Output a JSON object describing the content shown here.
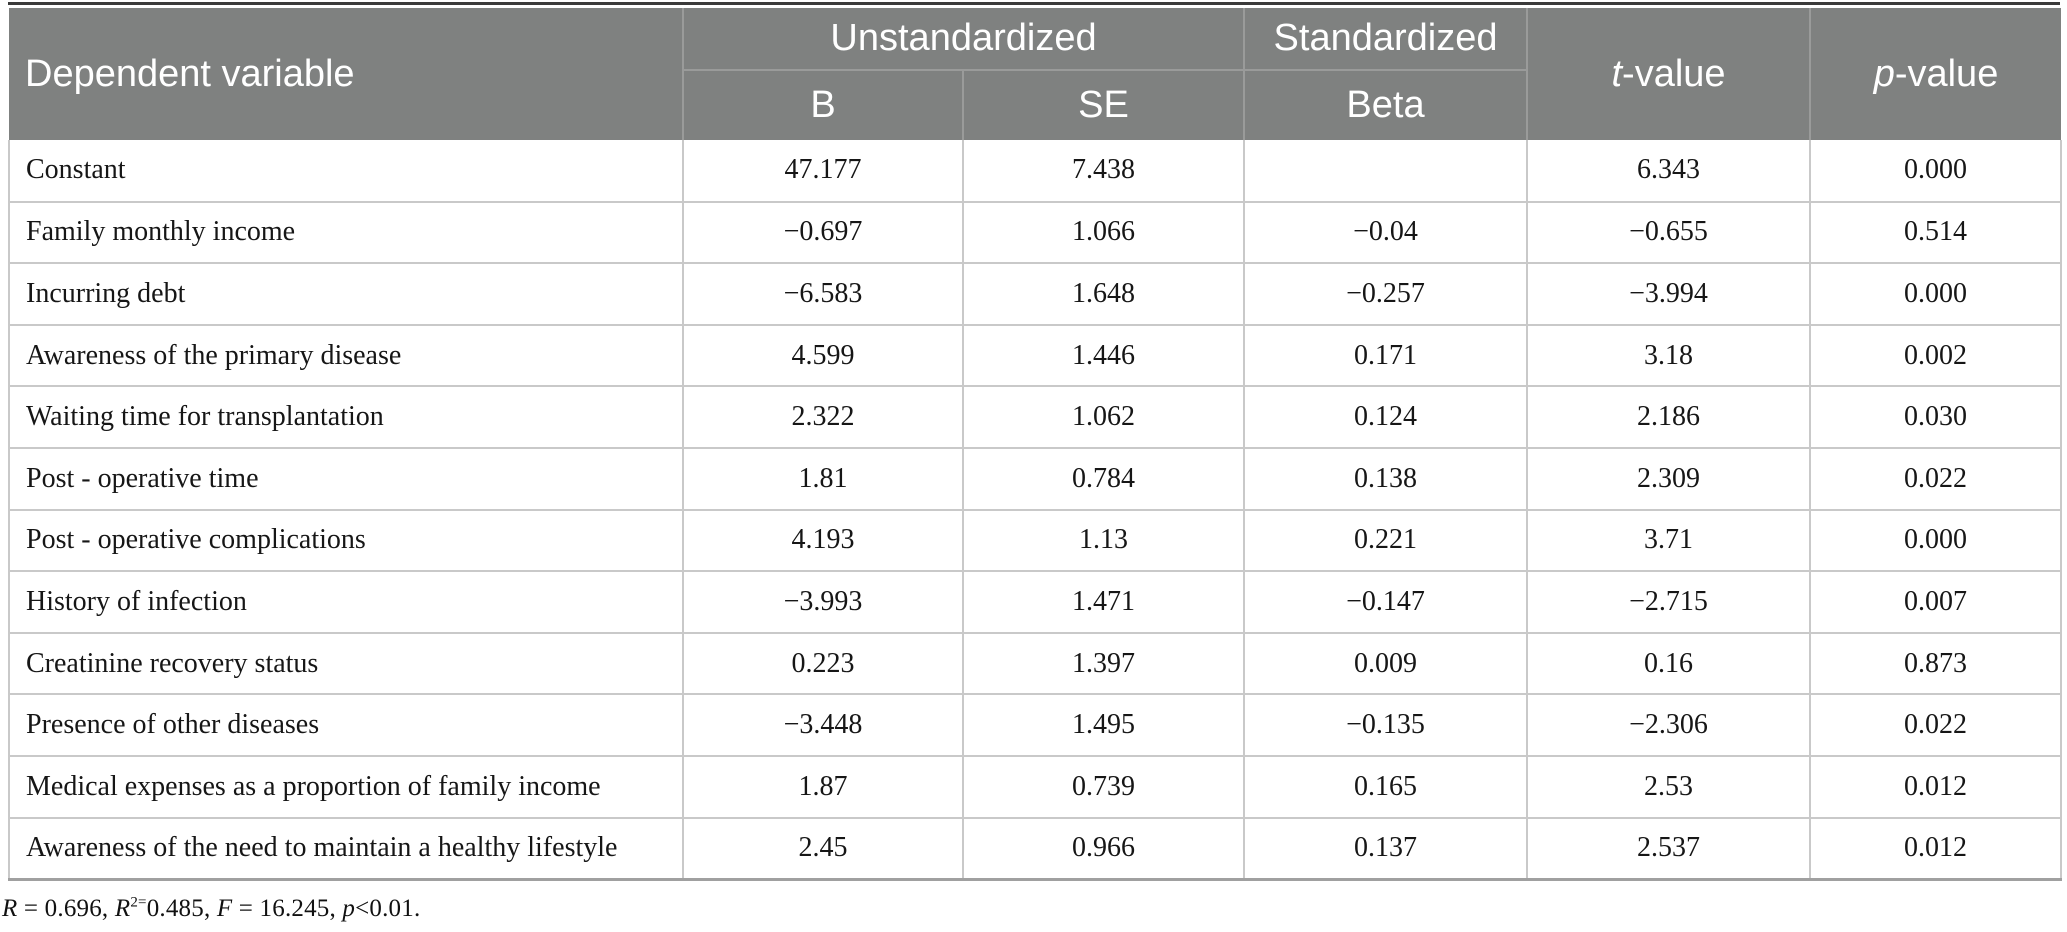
{
  "table": {
    "header": {
      "dependent_variable": "Dependent variable",
      "unstandardized": "Unstandardized",
      "standardized": "Standardized",
      "b": "B",
      "se": "SE",
      "beta": "Beta",
      "t_value": {
        "italic": "t",
        "rest": "-value"
      },
      "p_value": {
        "italic": "p",
        "rest": "-value"
      }
    },
    "rows": [
      {
        "label": "Constant",
        "b": "47.177",
        "se": "7.438",
        "beta": "",
        "t": "6.343",
        "p": "0.000"
      },
      {
        "label": "Family monthly income",
        "b": "−0.697",
        "se": "1.066",
        "beta": "−0.04",
        "t": "−0.655",
        "p": "0.514"
      },
      {
        "label": "Incurring debt",
        "b": "−6.583",
        "se": "1.648",
        "beta": "−0.257",
        "t": "−3.994",
        "p": "0.000"
      },
      {
        "label": "Awareness of the primary disease",
        "b": "4.599",
        "se": "1.446",
        "beta": "0.171",
        "t": "3.18",
        "p": "0.002"
      },
      {
        "label": "Waiting time for transplantation",
        "b": "2.322",
        "se": "1.062",
        "beta": "0.124",
        "t": "2.186",
        "p": "0.030"
      },
      {
        "label": "Post - operative time",
        "b": "1.81",
        "se": "0.784",
        "beta": "0.138",
        "t": "2.309",
        "p": "0.022"
      },
      {
        "label": "Post - operative complications",
        "b": "4.193",
        "se": "1.13",
        "beta": "0.221",
        "t": "3.71",
        "p": "0.000"
      },
      {
        "label": "History of infection",
        "b": "−3.993",
        "se": "1.471",
        "beta": "−0.147",
        "t": "−2.715",
        "p": "0.007"
      },
      {
        "label": "Creatinine recovery status",
        "b": "0.223",
        "se": "1.397",
        "beta": "0.009",
        "t": "0.16",
        "p": "0.873"
      },
      {
        "label": "Presence of other diseases",
        "b": "−3.448",
        "se": "1.495",
        "beta": "−0.135",
        "t": "−2.306",
        "p": "0.022"
      },
      {
        "label": "Medical expenses as a proportion of family income",
        "b": "1.87",
        "se": "0.739",
        "beta": "0.165",
        "t": "2.53",
        "p": "0.012"
      },
      {
        "label": "Awareness of the need to maintain a healthy lifestyle",
        "b": "2.45",
        "se": "0.966",
        "beta": "0.137",
        "t": "2.537",
        "p": "0.012"
      }
    ],
    "footnote_segments": [
      {
        "text": "R",
        "italic": true
      },
      {
        "text": " = 0.696, "
      },
      {
        "text": "R",
        "italic": true
      },
      {
        "text": "2=",
        "sup": true
      },
      {
        "text": "0.485, "
      },
      {
        "text": "F",
        "italic": true
      },
      {
        "text": " = 16.245, "
      },
      {
        "text": "p",
        "italic": true
      },
      {
        "text": "<0.01."
      }
    ]
  },
  "colors": {
    "header_bg": "#7f8180",
    "header_text": "#ffffff",
    "header_divider": "#9a9b9a",
    "body_divider": "#c9c9c9",
    "top_rule": "#3a3a3a",
    "bottom_rule": "#a0a0a0",
    "body_text": "#161616"
  }
}
